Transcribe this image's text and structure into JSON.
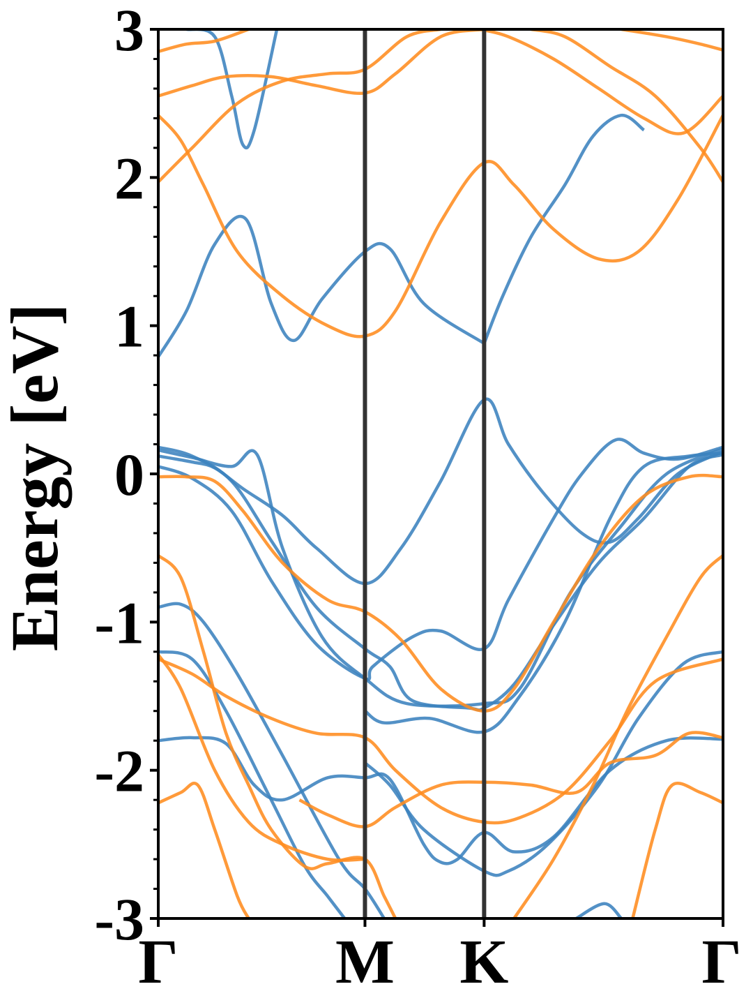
{
  "chart_data": {
    "type": "line",
    "title": "",
    "xlabel": "",
    "ylabel": "Energy [eV]",
    "ylim": [
      -3,
      3
    ],
    "yticks": [
      -3,
      -2,
      -1,
      0,
      1,
      2,
      3
    ],
    "ytick_labels": [
      "-3",
      "-2",
      "-1",
      "0",
      "1",
      "2",
      "3"
    ],
    "xlim": [
      0,
      1
    ],
    "xticks": [
      0,
      0.366,
      0.577,
      1
    ],
    "xtick_labels": [
      "Γ",
      "M",
      "K",
      "Γ"
    ],
    "vertical_lines_at": [
      0.366,
      0.577
    ],
    "grid": false,
    "legend": "none",
    "colors": {
      "blue": "#3b82be",
      "orange": "#ff8c1f",
      "vline": "#333333"
    },
    "series": [
      {
        "color": "blue",
        "points": [
          [
            0,
            0.79
          ],
          [
            0.05,
            1.1
          ],
          [
            0.1,
            1.55
          ],
          [
            0.155,
            1.72
          ],
          [
            0.2,
            1.15
          ],
          [
            0.24,
            0.9
          ],
          [
            0.29,
            1.18
          ],
          [
            0.366,
            1.5
          ],
          [
            0.41,
            1.52
          ],
          [
            0.47,
            1.15
          ],
          [
            0.577,
            0.88
          ]
        ]
      },
      {
        "color": "blue",
        "points": [
          [
            0.577,
            0.88
          ],
          [
            0.61,
            1.2
          ],
          [
            0.66,
            1.6
          ],
          [
            0.72,
            1.95
          ],
          [
            0.77,
            2.28
          ],
          [
            0.82,
            2.42
          ],
          [
            0.86,
            2.32
          ]
        ]
      },
      {
        "color": "blue",
        "points": [
          [
            0.05,
            3.0
          ],
          [
            0.1,
            2.95
          ],
          [
            0.13,
            2.55
          ],
          [
            0.15,
            2.22
          ],
          [
            0.17,
            2.32
          ],
          [
            0.21,
            3.0
          ]
        ]
      },
      {
        "color": "blue",
        "points": [
          [
            0,
            0.12
          ],
          [
            0.06,
            0.08
          ],
          [
            0.1,
            0.04
          ],
          [
            0.15,
            -0.1
          ],
          [
            0.22,
            -0.28
          ],
          [
            0.28,
            -0.5
          ],
          [
            0.366,
            -0.74
          ],
          [
            0.43,
            -0.5
          ],
          [
            0.5,
            -0.05
          ],
          [
            0.577,
            0.5
          ],
          [
            0.62,
            0.2
          ],
          [
            0.68,
            -0.12
          ],
          [
            0.75,
            -0.4
          ],
          [
            0.8,
            -0.46
          ],
          [
            0.85,
            -0.3
          ],
          [
            0.92,
            0.0
          ],
          [
            1.0,
            0.15
          ]
        ]
      },
      {
        "color": "blue",
        "points": [
          [
            0,
            0.16
          ],
          [
            0.06,
            0.11
          ],
          [
            0.13,
            0.05
          ],
          [
            0.175,
            0.13
          ],
          [
            0.22,
            -0.5
          ],
          [
            0.29,
            -1.1
          ],
          [
            0.366,
            -1.38
          ],
          [
            0.44,
            -1.55
          ],
          [
            0.577,
            -1.55
          ],
          [
            0.64,
            -1.45
          ],
          [
            0.73,
            -0.8
          ],
          [
            0.82,
            -0.35
          ],
          [
            0.9,
            0.0
          ],
          [
            1.0,
            0.17
          ]
        ]
      },
      {
        "color": "blue",
        "points": [
          [
            0,
            0.18
          ],
          [
            0.06,
            0.12
          ],
          [
            0.13,
            -0.05
          ],
          [
            0.2,
            -0.45
          ],
          [
            0.28,
            -0.9
          ],
          [
            0.366,
            -1.18
          ],
          [
            0.41,
            -1.3
          ],
          [
            0.45,
            -1.53
          ],
          [
            0.55,
            -1.58
          ],
          [
            0.577,
            -1.58
          ],
          [
            0.63,
            -1.42
          ],
          [
            0.7,
            -1.02
          ],
          [
            0.78,
            -0.6
          ],
          [
            0.86,
            -0.3
          ],
          [
            0.94,
            0.05
          ],
          [
            1.0,
            0.13
          ]
        ]
      },
      {
        "color": "blue",
        "points": [
          [
            0,
            0.05
          ],
          [
            0.06,
            -0.03
          ],
          [
            0.13,
            -0.25
          ],
          [
            0.2,
            -0.72
          ],
          [
            0.28,
            -1.15
          ],
          [
            0.366,
            -1.38
          ],
          [
            0.38,
            -1.3
          ],
          [
            0.45,
            -1.1
          ],
          [
            0.5,
            -1.06
          ],
          [
            0.577,
            -1.18
          ],
          [
            0.62,
            -0.85
          ],
          [
            0.7,
            -0.3
          ],
          [
            0.75,
            0.0
          ],
          [
            0.81,
            0.23
          ],
          [
            0.86,
            0.14
          ],
          [
            0.92,
            0.1
          ],
          [
            1.0,
            0.18
          ]
        ]
      },
      {
        "color": "blue",
        "points": [
          [
            0,
            -0.9
          ],
          [
            0.04,
            -0.88
          ],
          [
            0.08,
            -1.0
          ],
          [
            0.14,
            -1.35
          ],
          [
            0.22,
            -1.9
          ],
          [
            0.32,
            -2.6
          ],
          [
            0.366,
            -2.8
          ],
          [
            0.4,
            -3.0
          ]
        ]
      },
      {
        "color": "blue",
        "points": [
          [
            0,
            -1.2
          ],
          [
            0.06,
            -1.25
          ],
          [
            0.12,
            -1.6
          ],
          [
            0.2,
            -2.2
          ],
          [
            0.26,
            -2.65
          ],
          [
            0.3,
            -2.85
          ],
          [
            0.33,
            -3.0
          ]
        ]
      },
      {
        "color": "blue",
        "points": [
          [
            0,
            -1.8
          ],
          [
            0.06,
            -1.78
          ],
          [
            0.12,
            -1.82
          ],
          [
            0.17,
            -2.1
          ],
          [
            0.22,
            -2.2
          ],
          [
            0.3,
            -2.05
          ],
          [
            0.366,
            -2.05
          ],
          [
            0.41,
            -2.06
          ],
          [
            0.47,
            -2.5
          ],
          [
            0.5,
            -2.62
          ],
          [
            0.53,
            -2.6
          ],
          [
            0.577,
            -2.42
          ],
          [
            0.63,
            -2.55
          ],
          [
            0.7,
            -2.45
          ],
          [
            0.8,
            -2.0
          ],
          [
            0.9,
            -1.8
          ],
          [
            1.0,
            -1.79
          ]
        ]
      },
      {
        "color": "blue",
        "points": [
          [
            0.366,
            -1.95
          ],
          [
            0.41,
            -2.1
          ],
          [
            0.47,
            -2.4
          ],
          [
            0.577,
            -2.68
          ],
          [
            0.62,
            -2.68
          ],
          [
            0.69,
            -2.5
          ],
          [
            0.78,
            -2.1
          ],
          [
            0.85,
            -1.65
          ],
          [
            0.93,
            -1.28
          ],
          [
            1.0,
            -1.2
          ]
        ]
      },
      {
        "color": "blue",
        "points": [
          [
            0.366,
            -1.6
          ],
          [
            0.4,
            -1.68
          ],
          [
            0.48,
            -1.65
          ],
          [
            0.577,
            -1.74
          ],
          [
            0.64,
            -1.5
          ],
          [
            0.72,
            -1.0
          ],
          [
            0.8,
            -0.3
          ],
          [
            0.86,
            0.05
          ],
          [
            0.94,
            0.12
          ],
          [
            1.0,
            0.14
          ]
        ]
      },
      {
        "color": "blue",
        "points": [
          [
            0.74,
            -3.0
          ],
          [
            0.79,
            -2.9
          ],
          [
            0.82,
            -3.0
          ]
        ]
      },
      {
        "color": "orange",
        "points": [
          [
            0,
            2.85
          ],
          [
            0.05,
            2.9
          ],
          [
            0.1,
            2.92
          ],
          [
            0.16,
            3.0
          ]
        ]
      },
      {
        "color": "orange",
        "points": [
          [
            0,
            2.55
          ],
          [
            0.06,
            2.62
          ],
          [
            0.12,
            2.68
          ],
          [
            0.2,
            2.68
          ],
          [
            0.28,
            2.62
          ],
          [
            0.366,
            2.57
          ],
          [
            0.42,
            2.7
          ],
          [
            0.5,
            2.95
          ],
          [
            0.577,
            3.0
          ]
        ]
      },
      {
        "color": "orange",
        "points": [
          [
            0,
            2.42
          ],
          [
            0.04,
            2.25
          ],
          [
            0.08,
            1.95
          ],
          [
            0.14,
            1.5
          ],
          [
            0.22,
            1.2
          ],
          [
            0.3,
            1.0
          ],
          [
            0.366,
            0.93
          ],
          [
            0.42,
            1.1
          ],
          [
            0.5,
            1.7
          ],
          [
            0.577,
            2.1
          ],
          [
            0.63,
            1.95
          ],
          [
            0.7,
            1.65
          ],
          [
            0.78,
            1.45
          ],
          [
            0.85,
            1.5
          ],
          [
            0.92,
            1.85
          ],
          [
            1.0,
            2.42
          ]
        ]
      },
      {
        "color": "orange",
        "points": [
          [
            0,
            1.97
          ],
          [
            0.06,
            2.2
          ],
          [
            0.14,
            2.5
          ],
          [
            0.22,
            2.65
          ],
          [
            0.3,
            2.7
          ],
          [
            0.366,
            2.73
          ],
          [
            0.44,
            2.95
          ],
          [
            0.5,
            3.0
          ]
        ]
      },
      {
        "color": "orange",
        "points": [
          [
            0,
            -0.02
          ],
          [
            0.05,
            -0.02
          ],
          [
            0.1,
            -0.05
          ],
          [
            0.15,
            -0.25
          ],
          [
            0.22,
            -0.6
          ],
          [
            0.3,
            -0.85
          ],
          [
            0.366,
            -0.93
          ],
          [
            0.43,
            -1.12
          ],
          [
            0.5,
            -1.45
          ],
          [
            0.577,
            -1.6
          ],
          [
            0.63,
            -1.45
          ],
          [
            0.7,
            -1.0
          ],
          [
            0.78,
            -0.5
          ],
          [
            0.86,
            -0.15
          ],
          [
            0.94,
            -0.02
          ],
          [
            1.0,
            -0.02
          ]
        ]
      },
      {
        "color": "orange",
        "points": [
          [
            0,
            -0.55
          ],
          [
            0.04,
            -0.7
          ],
          [
            0.08,
            -1.2
          ],
          [
            0.12,
            -1.75
          ],
          [
            0.16,
            -2.1
          ],
          [
            0.2,
            -2.4
          ],
          [
            0.26,
            -2.65
          ],
          [
            0.3,
            -2.63
          ],
          [
            0.366,
            -2.6
          ],
          [
            0.4,
            -2.85
          ],
          [
            0.42,
            -3.0
          ]
        ]
      },
      {
        "color": "orange",
        "points": [
          [
            0,
            -1.22
          ],
          [
            0.04,
            -1.45
          ],
          [
            0.1,
            -2.0
          ],
          [
            0.16,
            -2.35
          ],
          [
            0.22,
            -2.5
          ],
          [
            0.3,
            -2.6
          ],
          [
            0.366,
            -2.6
          ]
        ]
      },
      {
        "color": "orange",
        "points": [
          [
            0,
            -1.25
          ],
          [
            0.06,
            -1.35
          ],
          [
            0.12,
            -1.5
          ],
          [
            0.2,
            -1.65
          ],
          [
            0.28,
            -1.75
          ],
          [
            0.366,
            -1.78
          ],
          [
            0.42,
            -2.0
          ],
          [
            0.5,
            -2.25
          ],
          [
            0.577,
            -2.35
          ],
          [
            0.64,
            -2.32
          ],
          [
            0.72,
            -2.15
          ],
          [
            0.8,
            -1.8
          ],
          [
            0.88,
            -1.4
          ],
          [
            1.0,
            -1.25
          ]
        ]
      },
      {
        "color": "orange",
        "points": [
          [
            0,
            -2.22
          ],
          [
            0.04,
            -2.15
          ],
          [
            0.07,
            -2.1
          ],
          [
            0.1,
            -2.4
          ],
          [
            0.14,
            -2.85
          ],
          [
            0.16,
            -3.0
          ]
        ]
      },
      {
        "color": "orange",
        "points": [
          [
            0.25,
            -2.2
          ],
          [
            0.3,
            -2.3
          ],
          [
            0.366,
            -2.38
          ],
          [
            0.42,
            -2.25
          ],
          [
            0.5,
            -2.1
          ],
          [
            0.577,
            -2.08
          ],
          [
            0.66,
            -2.1
          ],
          [
            0.74,
            -2.15
          ],
          [
            0.8,
            -1.95
          ],
          [
            0.88,
            -1.9
          ],
          [
            0.94,
            -1.75
          ],
          [
            1.0,
            -1.78
          ]
        ]
      },
      {
        "color": "orange",
        "points": [
          [
            0.63,
            -3.0
          ],
          [
            0.7,
            -2.6
          ],
          [
            0.77,
            -2.1
          ],
          [
            0.83,
            -1.6
          ],
          [
            0.9,
            -1.1
          ],
          [
            0.96,
            -0.7
          ],
          [
            1.0,
            -0.55
          ]
        ]
      },
      {
        "color": "orange",
        "points": [
          [
            0.84,
            -3.0
          ],
          [
            0.88,
            -2.4
          ],
          [
            0.91,
            -2.1
          ],
          [
            0.96,
            -2.15
          ],
          [
            1.0,
            -2.22
          ]
        ]
      },
      {
        "color": "orange",
        "points": [
          [
            0.57,
            3.0
          ],
          [
            0.62,
            2.95
          ],
          [
            0.7,
            2.8
          ],
          [
            0.78,
            2.6
          ],
          [
            0.86,
            2.4
          ],
          [
            0.93,
            2.3
          ],
          [
            1.0,
            2.55
          ]
        ]
      },
      {
        "color": "orange",
        "points": [
          [
            0.66,
            3.0
          ],
          [
            0.72,
            2.95
          ],
          [
            0.8,
            2.75
          ],
          [
            0.88,
            2.55
          ],
          [
            0.96,
            2.2
          ],
          [
            1.0,
            1.97
          ]
        ]
      },
      {
        "color": "orange",
        "points": [
          [
            0.82,
            3.0
          ],
          [
            0.9,
            2.95
          ],
          [
            0.96,
            2.9
          ],
          [
            1.0,
            2.86
          ]
        ]
      }
    ]
  }
}
